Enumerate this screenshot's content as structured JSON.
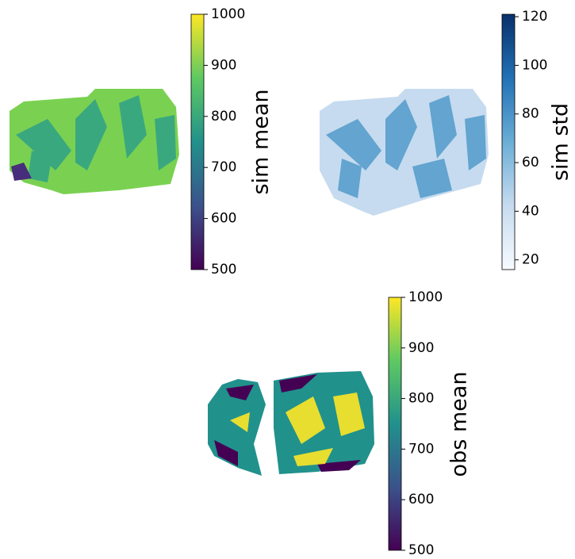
{
  "chart_data": [
    {
      "type": "heatmap",
      "label": "sim mean",
      "ylim": [
        500,
        1000
      ],
      "yticks": [
        500,
        600,
        700,
        800,
        900,
        1000
      ],
      "colormap": [
        "#440154",
        "#3b528b",
        "#21918c",
        "#5ec962",
        "#fde725"
      ]
    },
    {
      "type": "heatmap",
      "label": "sim std",
      "ylim": [
        16,
        121
      ],
      "yticks": [
        20,
        40,
        60,
        80,
        100,
        120
      ],
      "colormap": [
        "#f7fbff",
        "#c6dbef",
        "#6baed6",
        "#2171b5",
        "#08306b"
      ]
    },
    {
      "type": "heatmap",
      "label": "obs mean",
      "ylim": [
        500,
        1000
      ],
      "yticks": [
        500,
        600,
        700,
        800,
        900,
        1000
      ],
      "colormap": [
        "#440154",
        "#3b528b",
        "#21918c",
        "#5ec962",
        "#fde725"
      ]
    }
  ]
}
